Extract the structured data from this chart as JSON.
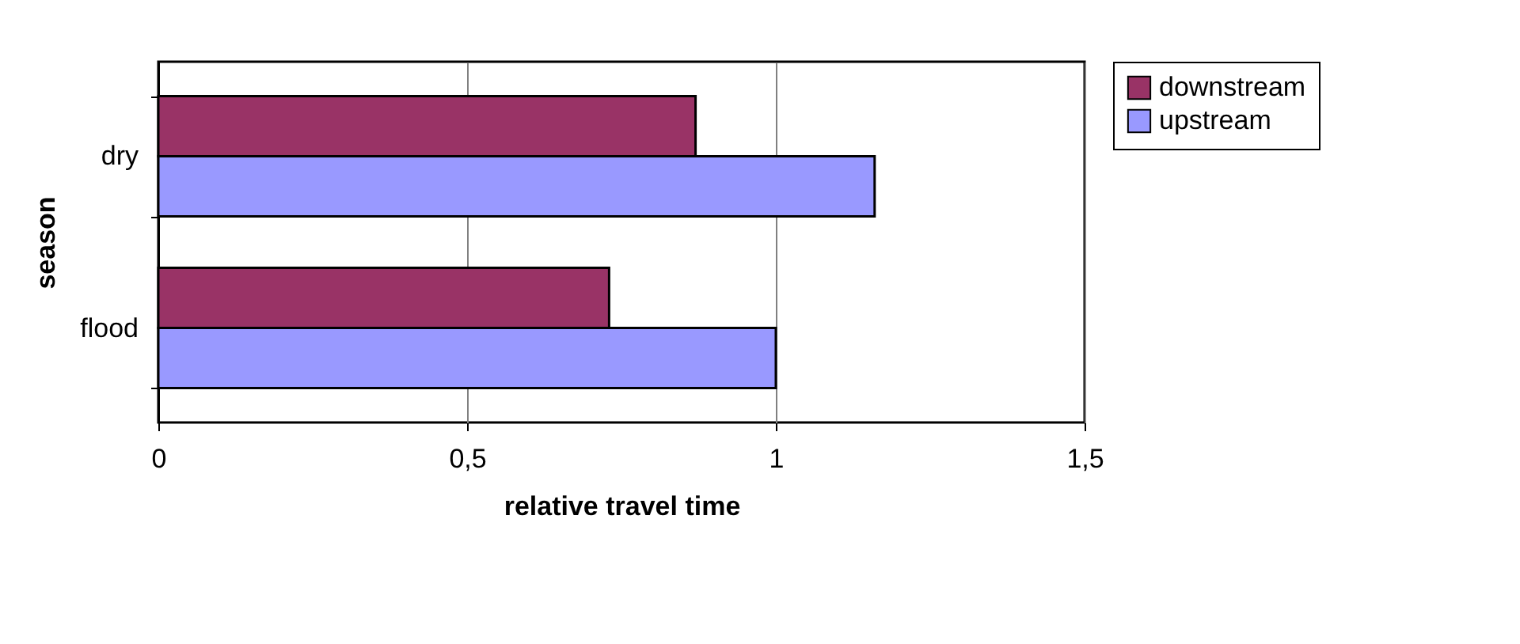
{
  "chart_data": {
    "type": "bar",
    "orientation": "horizontal",
    "xlabel": "relative travel time",
    "ylabel": "season",
    "categories": [
      "dry",
      "flood"
    ],
    "series": [
      {
        "name": "downstream",
        "color": "#993366",
        "values": [
          0.87,
          0.73
        ]
      },
      {
        "name": "upstream",
        "color": "#9999ff",
        "values": [
          1.16,
          1.0
        ]
      }
    ],
    "xlim": [
      0,
      1.5
    ],
    "xticks": [
      0,
      {
        "value": 0.5,
        "label": "0,5"
      },
      1,
      {
        "value": 1.5,
        "label": "1,5"
      }
    ],
    "grid": "x",
    "legend": "right"
  }
}
